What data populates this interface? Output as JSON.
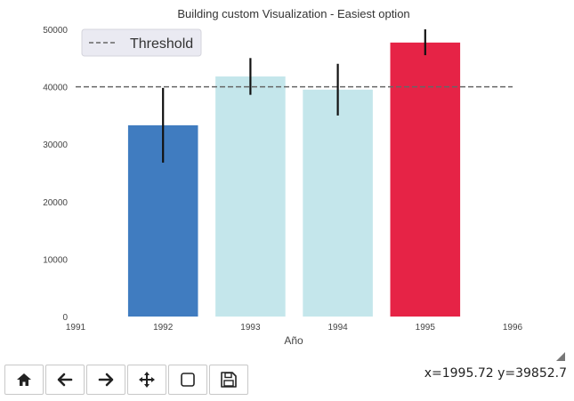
{
  "chart_data": {
    "type": "bar",
    "title": "Building custom Visualization - Easiest option",
    "xlabel": "Año",
    "ylabel": "",
    "categories": [
      1992,
      1993,
      1994,
      1995
    ],
    "values": [
      33300,
      41800,
      39500,
      47700
    ],
    "error_low": [
      26800,
      38600,
      35000,
      45500
    ],
    "error_high": [
      39800,
      45000,
      44000,
      50000
    ],
    "bar_colors": [
      "#407cc0",
      "#c4e6eb",
      "#c4e6eb",
      "#e62346"
    ],
    "threshold": 40000,
    "legend": {
      "label": "Threshold",
      "position": "top-left"
    },
    "xlim": [
      1991,
      1996
    ],
    "ylim": [
      0,
      50000
    ],
    "xticks": [
      "1991",
      "1992",
      "1993",
      "1994",
      "1995",
      "1996"
    ],
    "yticks": [
      "0",
      "10000",
      "20000",
      "30000",
      "40000",
      "50000"
    ],
    "grid": false
  },
  "toolbar": {
    "buttons": [
      {
        "name": "home-button",
        "icon": "home-icon"
      },
      {
        "name": "back-button",
        "icon": "arrow-left-icon"
      },
      {
        "name": "forward-button",
        "icon": "arrow-right-icon"
      },
      {
        "name": "pan-button",
        "icon": "move-icon"
      },
      {
        "name": "zoom-button",
        "icon": "zoom-rect-icon"
      },
      {
        "name": "save-button",
        "icon": "save-icon"
      }
    ]
  },
  "status": {
    "coords": "x=1995.72 y=39852.7"
  }
}
